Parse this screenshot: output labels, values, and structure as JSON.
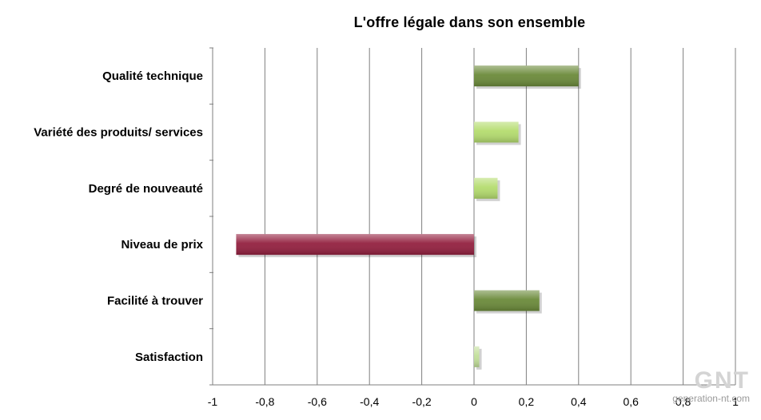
{
  "chart_data": {
    "type": "bar",
    "orientation": "horizontal",
    "title": "L'offre légale dans son ensemble",
    "categories": [
      "Qualité technique",
      "Variété des produits/ services",
      "Degré de nouveauté",
      "Niveau de prix",
      "Facilité à trouver",
      "Satisfaction"
    ],
    "values": [
      0.4,
      0.17,
      0.09,
      -0.91,
      0.25,
      0.02
    ],
    "bar_colors": [
      "#6b8a3a",
      "#b4dc6e",
      "#b4dc6e",
      "#93203f",
      "#6b8a3a",
      "#c2df9a"
    ],
    "xlim": [
      -1,
      1
    ],
    "xticks": [
      -1,
      -0.8,
      -0.6,
      -0.4,
      -0.2,
      0,
      0.2,
      0.4,
      0.6,
      0.8,
      1
    ],
    "xtick_labels": [
      "-1",
      "-0,8",
      "-0,6",
      "-0,4",
      "-0,2",
      "0",
      "0,2",
      "0,4",
      "0,6",
      "0,8",
      "1"
    ],
    "grid": true,
    "legend": "none"
  },
  "watermark": {
    "logo": "GNT",
    "site": "generation-nt.com"
  }
}
